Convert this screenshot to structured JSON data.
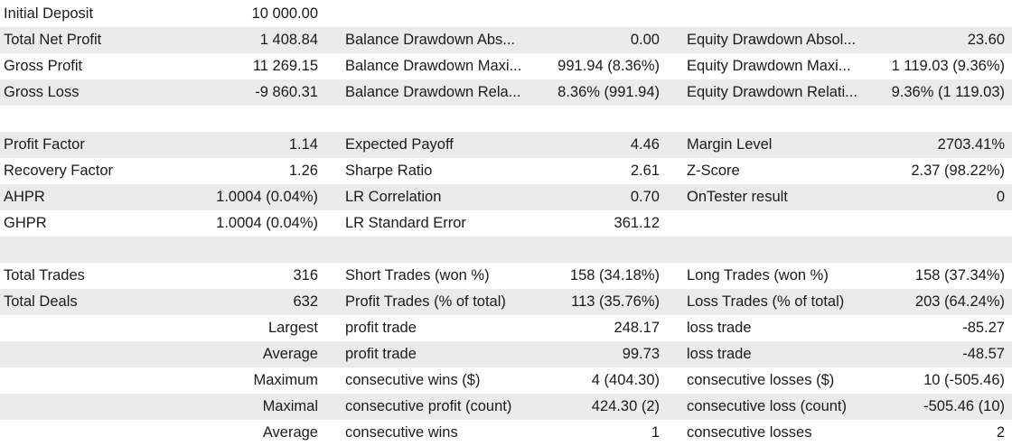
{
  "rows": [
    {
      "c1": "Initial Deposit",
      "c2": "10 000.00",
      "c3": "",
      "c4": "",
      "c5": "",
      "c6": ""
    },
    {
      "c1": "Total Net Profit",
      "c2": "1 408.84",
      "c3": "Balance Drawdown Abs...",
      "c4": "0.00",
      "c5": "Equity Drawdown Absol...",
      "c6": "23.60"
    },
    {
      "c1": "Gross Profit",
      "c2": "11 269.15",
      "c3": "Balance Drawdown Maxi...",
      "c4": "991.94 (8.36%)",
      "c5": "Equity Drawdown Maxi...",
      "c6": "1 119.03 (9.36%)"
    },
    {
      "c1": "Gross Loss",
      "c2": "-9 860.31",
      "c3": "Balance Drawdown Rela...",
      "c4": "8.36% (991.94)",
      "c5": "Equity Drawdown Relati...",
      "c6": "9.36% (1 119.03)"
    },
    {
      "c1": "",
      "c2": "",
      "c3": "",
      "c4": "",
      "c5": "",
      "c6": ""
    },
    {
      "c1": "Profit Factor",
      "c2": "1.14",
      "c3": "Expected Payoff",
      "c4": "4.46",
      "c5": "Margin Level",
      "c6": "2703.41%"
    },
    {
      "c1": "Recovery Factor",
      "c2": "1.26",
      "c3": "Sharpe Ratio",
      "c4": "2.61",
      "c5": "Z-Score",
      "c6": "2.37 (98.22%)"
    },
    {
      "c1": "AHPR",
      "c2": "1.0004 (0.04%)",
      "c3": "LR Correlation",
      "c4": "0.70",
      "c5": "OnTester result",
      "c6": "0"
    },
    {
      "c1": "GHPR",
      "c2": "1.0004 (0.04%)",
      "c3": "LR Standard Error",
      "c4": "361.12",
      "c5": "",
      "c6": ""
    },
    {
      "c1": "",
      "c2": "",
      "c3": "",
      "c4": "",
      "c5": "",
      "c6": ""
    },
    {
      "c1": "Total Trades",
      "c2": "316",
      "c3": "Short Trades (won %)",
      "c4": "158 (34.18%)",
      "c5": "Long Trades (won %)",
      "c6": "158 (37.34%)"
    },
    {
      "c1": "Total Deals",
      "c2": "632",
      "c3": "Profit Trades (% of total)",
      "c4": "113 (35.76%)",
      "c5": "Loss Trades (% of total)",
      "c6": "203 (64.24%)"
    },
    {
      "c1": "",
      "c2": "Largest",
      "c3": "profit trade",
      "c4": "248.17",
      "c5": "loss trade",
      "c6": "-85.27"
    },
    {
      "c1": "",
      "c2": "Average",
      "c3": "profit trade",
      "c4": "99.73",
      "c5": "loss trade",
      "c6": "-48.57"
    },
    {
      "c1": "",
      "c2": "Maximum",
      "c3": "consecutive wins ($)",
      "c4": "4 (404.30)",
      "c5": "consecutive losses ($)",
      "c6": "10 (-505.46)"
    },
    {
      "c1": "",
      "c2": "Maximal",
      "c3": "consecutive profit (count)",
      "c4": "424.30 (2)",
      "c5": "consecutive loss (count)",
      "c6": "-505.46 (10)"
    },
    {
      "c1": "",
      "c2": "Average",
      "c3": "consecutive wins",
      "c4": "1",
      "c5": "consecutive losses",
      "c6": "2"
    }
  ]
}
